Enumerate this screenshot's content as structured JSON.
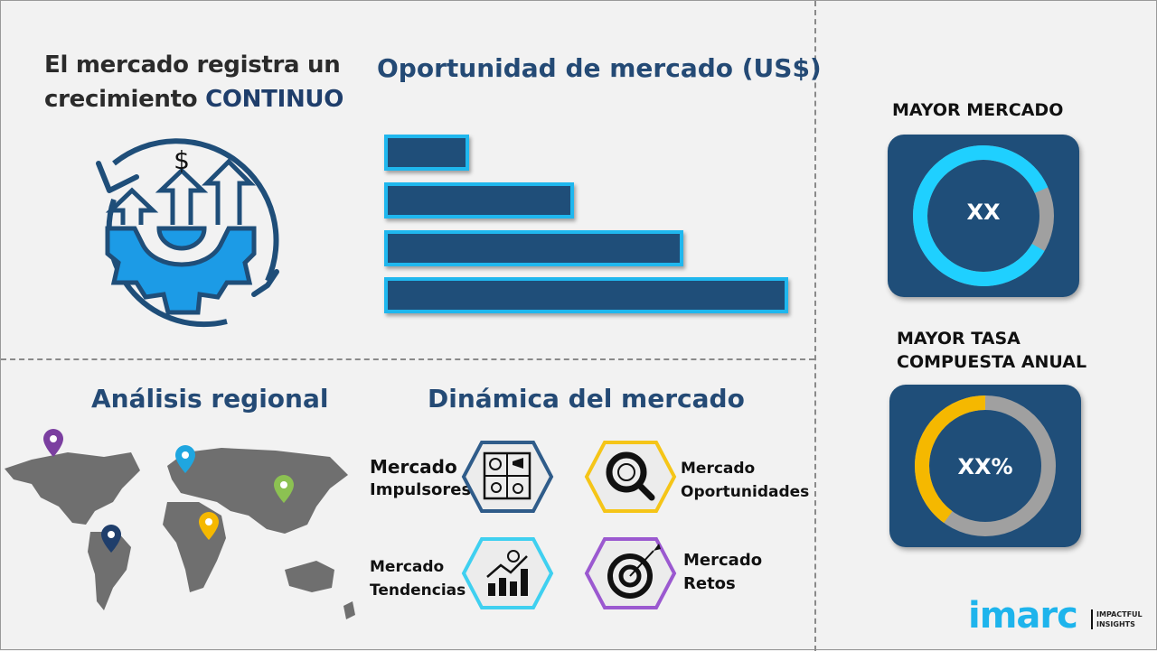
{
  "growth": {
    "line1": "El mercado registra un",
    "line2_prefix": "crecimiento ",
    "line2_accent": "CONTINUO",
    "icon": "gear-growth-arrows-dollar-icon",
    "dollar": "$"
  },
  "opportunity": {
    "title": "Oportunidad de mercado (US$)",
    "bar_relative_values": [
      0.21,
      0.47,
      0.74,
      1.0
    ],
    "bar_fill": "#1f4e79",
    "bar_border": "#1fb7ee"
  },
  "regional": {
    "title": "Análisis regional",
    "pin_colors": [
      "#7b3fa0",
      "#1fa6e0",
      "#8cc152",
      "#f5b800",
      "#1f3e6b"
    ]
  },
  "dynamics": {
    "title": "Dinámica del mercado",
    "items": [
      {
        "line1": "Mercado",
        "line2": "Impulsores",
        "icon": "puzzle-icon",
        "color": "#2f5c8a"
      },
      {
        "line1": "Mercado",
        "line2": "Oportunidades",
        "icon": "magnifier-dollar-icon",
        "color": "#f5c518"
      },
      {
        "line1": "Mercado",
        "line2": "Tendencias",
        "icon": "growth-chart-icon",
        "color": "#3fd0f0"
      },
      {
        "line1": "Mercado",
        "line2": "Retos",
        "icon": "target-icon",
        "color": "#9b59d0"
      }
    ]
  },
  "largest_market": {
    "title": "MAYOR MERCADO",
    "value": "XX",
    "fill_fraction": 0.85,
    "fill_color": "#1fd0ff",
    "rest_color": "#a0a0a0"
  },
  "highest_cagr": {
    "title_line1": "MAYOR TASA",
    "title_line2": "COMPUESTA ANUAL",
    "value": "XX%",
    "fill_fraction": 0.4,
    "fill_color": "#f5b800",
    "rest_color": "#a0a0a0"
  },
  "logo": {
    "brand": "imarc",
    "tagline1": "IMPACTFUL",
    "tagline2": "INSIGHTS"
  }
}
